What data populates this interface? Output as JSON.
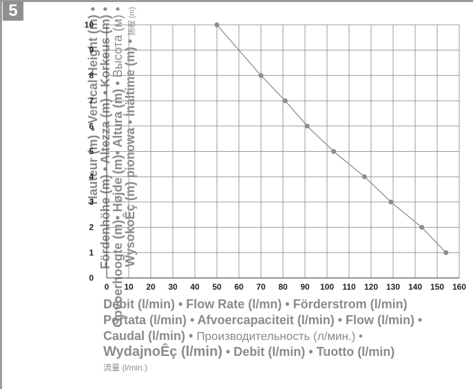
{
  "badge": "5",
  "ylabel": {
    "line1": "Hauteur (m) • Vertical Height (m) •",
    "line2": "Fördenhöhe (m) • Altezza (m) • Korkeus (m) •",
    "line3a": "Opvoerhoogte (m)• Højde (m)• Altura (m) •",
    "line3b": "Высота (м) •",
    "line4a": "WysokoÊç (m) pionowa • İnältime (m) •",
    "line4b": "扬程 (m)"
  },
  "xlabel": {
    "line1": "Débit (l/min) • Flow Rate (l/mn) • Förderstrom (l/min)",
    "line2": "Portata (l/min) • Afvoercapaciteit (l/min) • Flow (l/min) •",
    "line3a": "Caudal (l/min) •",
    "line3b": "Производительность (л/мин.) •",
    "line4a": "WydajnoÊç (l/min)",
    "line4b": "• Debit (l/min) • Tuotto (l/min)",
    "line5": "流量 (l/min.)"
  },
  "colors": {
    "grid": "#9a9a9a",
    "line": "#8c8c8c",
    "marker": "#8c8c8c",
    "text": "#8a8a8a",
    "tick": "#222222"
  },
  "chart_data": {
    "type": "line",
    "xlim": [
      0,
      160
    ],
    "ylim": [
      0,
      10
    ],
    "xticks": [
      0,
      10,
      20,
      30,
      40,
      50,
      60,
      70,
      80,
      90,
      100,
      110,
      120,
      130,
      140,
      150,
      160
    ],
    "yticks": [
      0,
      1,
      2,
      3,
      4,
      5,
      6,
      7,
      8,
      9,
      10
    ],
    "grid": true,
    "series": [
      {
        "x": [
          50,
          70,
          81,
          91,
          103,
          117,
          129,
          143,
          154
        ],
        "y": [
          10,
          8,
          7,
          6,
          5,
          4,
          3,
          2,
          1
        ]
      }
    ]
  }
}
